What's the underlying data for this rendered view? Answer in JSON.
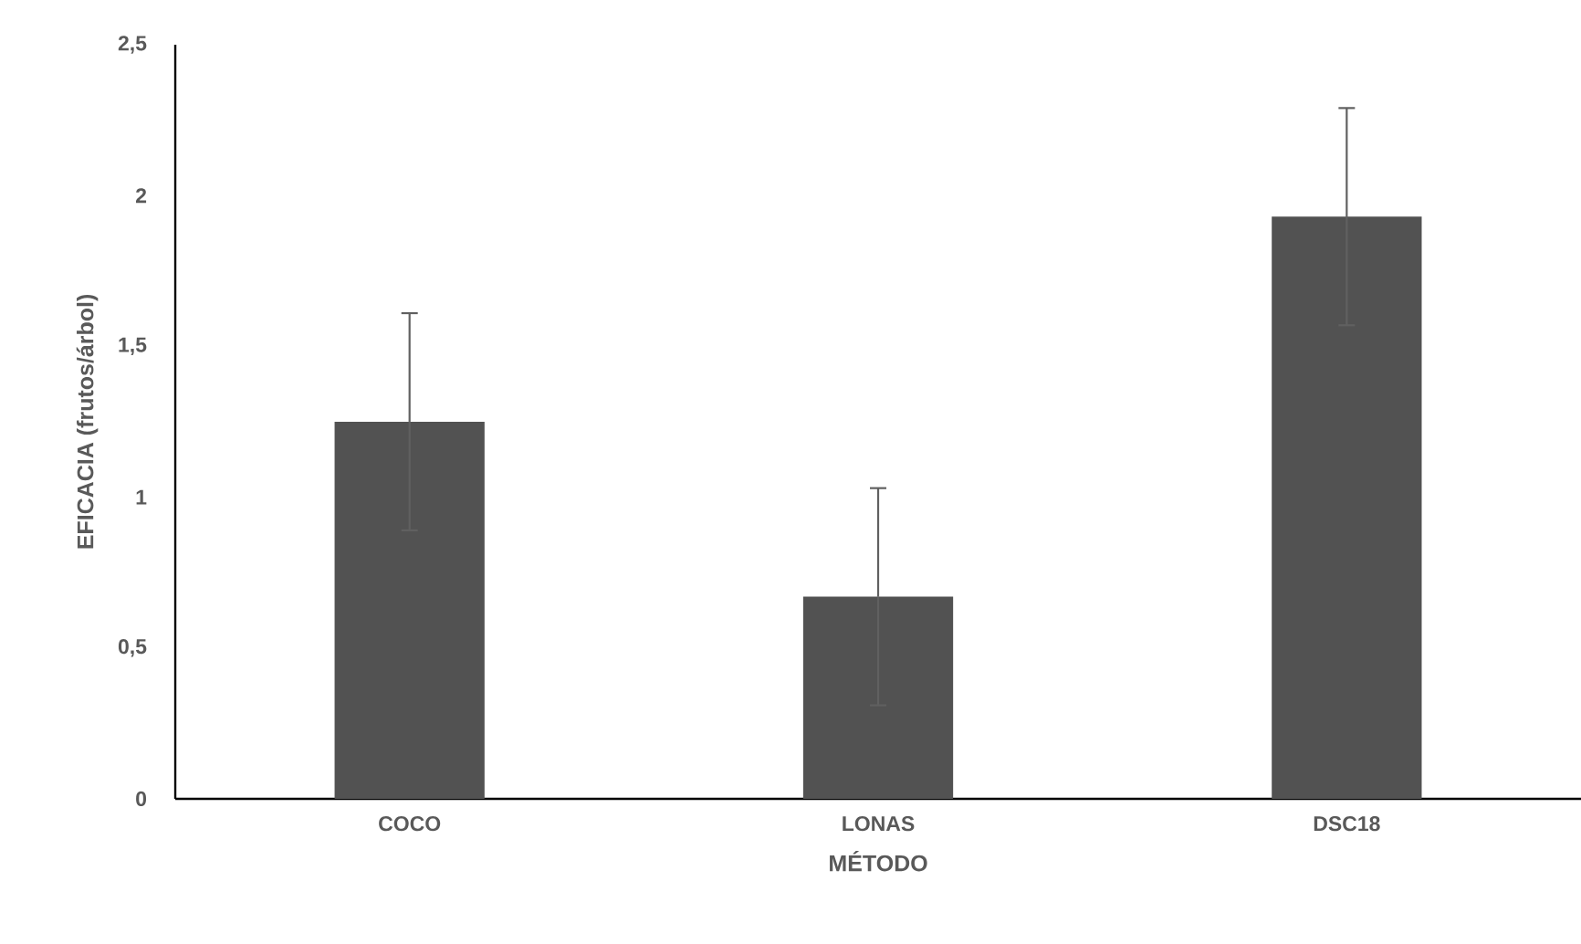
{
  "chart_data": {
    "type": "bar",
    "xlabel": "MÉTODO",
    "ylabel": "EFICACIA (frutos/árbol)",
    "categories": [
      "COCO",
      "LONAS",
      "DSC18"
    ],
    "values": [
      1.25,
      0.67,
      1.93
    ],
    "errors": [
      0.36,
      0.36,
      0.36
    ],
    "color": "#525252",
    "ylim": [
      0,
      2.5
    ],
    "yticks": [
      {
        "value": 0,
        "label": "0"
      },
      {
        "value": 0.5,
        "label": "0,5"
      },
      {
        "value": 1,
        "label": "1"
      },
      {
        "value": 1.5,
        "label": "1,5"
      },
      {
        "value": 2,
        "label": "2"
      },
      {
        "value": 2.5,
        "label": "2,5"
      }
    ],
    "grid": false
  }
}
